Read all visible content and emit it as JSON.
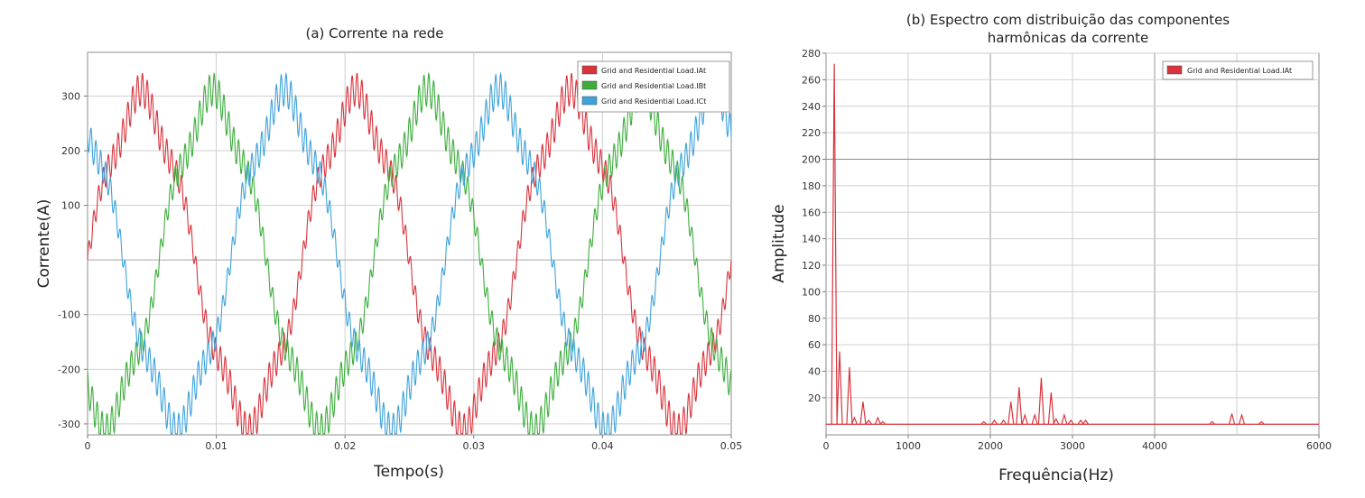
{
  "colors": {
    "red": "#d9343d",
    "green": "#3dae3d",
    "blue": "#3ea3dc",
    "grid": "#cfcfcf",
    "axis": "#8c8c8c"
  },
  "chart_data": [
    {
      "type": "line",
      "title": "(a) Corrente na rede",
      "xlabel": "Tempo(s)",
      "ylabel": "Corrente(A)",
      "xlim": [
        0,
        0.05
      ],
      "ylim": [
        -320,
        380
      ],
      "xticks": [
        0,
        0.01,
        0.02,
        0.03,
        0.04,
        0.05
      ],
      "xtick_labels": [
        "0",
        "0.01",
        "0.02",
        "0.03",
        "0.04",
        "0.05"
      ],
      "yticks": [
        300,
        200,
        100,
        -100,
        -200,
        -300
      ],
      "ytick_labels": [
        "300",
        "200",
        "100",
        "-100",
        "-200",
        "-300"
      ],
      "grid": true,
      "legend_position": "top-right",
      "series": [
        {
          "name": "Grid and Residential Load.IAt",
          "color": "#d9343d",
          "amplitude": 290,
          "frequency_hz": 60,
          "phase_deg": 0
        },
        {
          "name": "Grid and Residential Load.IBt",
          "color": "#3dae3d",
          "amplitude": 290,
          "frequency_hz": 60,
          "phase_deg": -120
        },
        {
          "name": "Grid and Residential Load.ICt",
          "color": "#3ea3dc",
          "amplitude": 290,
          "frequency_hz": 60,
          "phase_deg": 120
        }
      ],
      "ripple": {
        "amplitude": 30,
        "frequency_hz": 2640
      }
    },
    {
      "type": "bar",
      "title_line1": "(b) Espectro com distribuição das componentes",
      "title_line2": "harmônicas da corrente",
      "xlabel": "Frequência(Hz)",
      "ylabel": "Amplitude",
      "xlim": [
        0,
        6000
      ],
      "ylim": [
        -8,
        280
      ],
      "xticks": [
        0,
        1000,
        2000,
        3000,
        4000,
        6000
      ],
      "xtick_labels": [
        "0",
        "1000",
        "2000",
        "3000",
        "4000",
        "6000"
      ],
      "yticks": [
        280,
        260,
        240,
        220,
        200,
        180,
        160,
        140,
        120,
        100,
        80,
        60,
        40,
        20
      ],
      "ytick_labels": [
        "280",
        "260",
        "240",
        "220",
        "200",
        "180",
        "160",
        "140",
        "120",
        "100",
        "80",
        "60",
        "40",
        "20"
      ],
      "grid": true,
      "legend_position": "top-right",
      "series": [
        {
          "name": "Grid and Residential Load.IAt",
          "color": "#d9343d",
          "peaks": [
            {
              "f": 100,
              "a": 272
            },
            {
              "f": 165,
              "a": 55
            },
            {
              "f": 285,
              "a": 43
            },
            {
              "f": 345,
              "a": 5
            },
            {
              "f": 450,
              "a": 17
            },
            {
              "f": 520,
              "a": 3
            },
            {
              "f": 630,
              "a": 5
            },
            {
              "f": 690,
              "a": 2
            },
            {
              "f": 1920,
              "a": 2
            },
            {
              "f": 2050,
              "a": 3
            },
            {
              "f": 2160,
              "a": 3
            },
            {
              "f": 2250,
              "a": 17
            },
            {
              "f": 2350,
              "a": 28
            },
            {
              "f": 2420,
              "a": 7
            },
            {
              "f": 2540,
              "a": 7
            },
            {
              "f": 2620,
              "a": 35
            },
            {
              "f": 2740,
              "a": 24
            },
            {
              "f": 2800,
              "a": 4
            },
            {
              "f": 2900,
              "a": 7
            },
            {
              "f": 2980,
              "a": 3
            },
            {
              "f": 3100,
              "a": 3
            },
            {
              "f": 3160,
              "a": 3
            },
            {
              "f": 4700,
              "a": 2
            },
            {
              "f": 4940,
              "a": 8
            },
            {
              "f": 5060,
              "a": 7
            },
            {
              "f": 5300,
              "a": 2
            }
          ]
        }
      ]
    }
  ]
}
